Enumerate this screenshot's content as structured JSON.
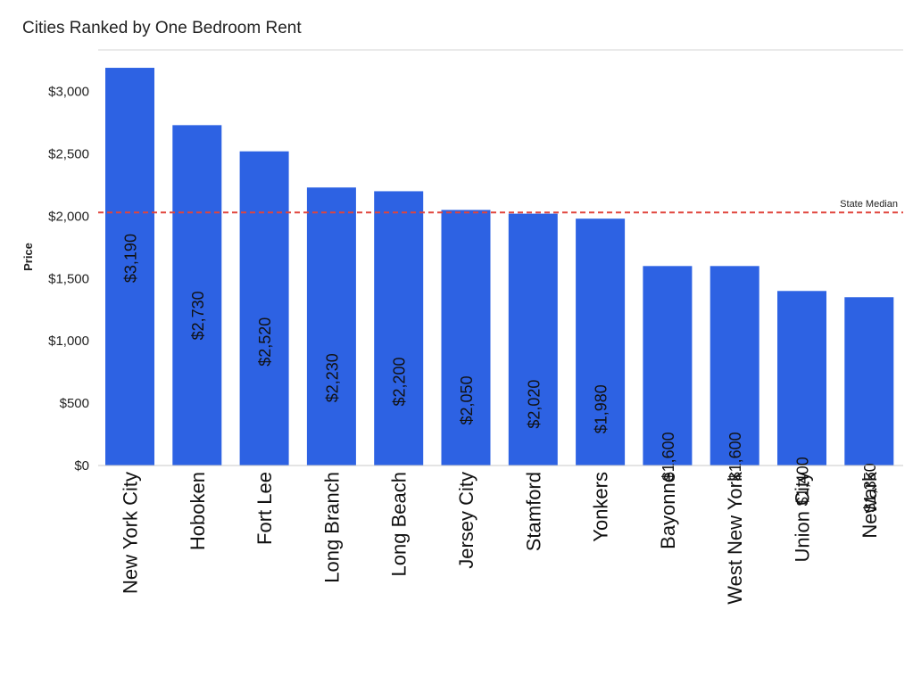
{
  "title": "Cities Ranked by One Bedroom Rent",
  "colors": {
    "bar": "#2d62e3",
    "median_line": "#e0453d",
    "axis": "#c8c8c8",
    "text": "#222222"
  },
  "chart_data": {
    "type": "bar",
    "title": "Cities Ranked by One Bedroom Rent",
    "xlabel": "",
    "ylabel": "Price",
    "ylim": [
      0,
      3300
    ],
    "grid": false,
    "yticks": [
      0,
      500,
      1000,
      1500,
      2000,
      2500,
      3000
    ],
    "ytick_labels": [
      "$0",
      "$500",
      "$1,000",
      "$1,500",
      "$2,000",
      "$2,500",
      "$3,000"
    ],
    "categories": [
      "New York City",
      "Hoboken",
      "Fort Lee",
      "Long Branch",
      "Long Beach",
      "Jersey City",
      "Stamford",
      "Yonkers",
      "Bayonne",
      "West New York",
      "Union City",
      "Newark"
    ],
    "values": [
      3190,
      2730,
      2520,
      2230,
      2200,
      2050,
      2020,
      1980,
      1600,
      1600,
      1400,
      1350
    ],
    "data_labels": [
      "$3,190",
      "$2,730",
      "$2,520",
      "$2,230",
      "$2,200",
      "$2,050",
      "$2,020",
      "$1,980",
      "$1,600",
      "$1,600",
      "$1,400",
      "$1,350"
    ],
    "reference_line": {
      "label": "State Median",
      "value": 2030
    }
  }
}
